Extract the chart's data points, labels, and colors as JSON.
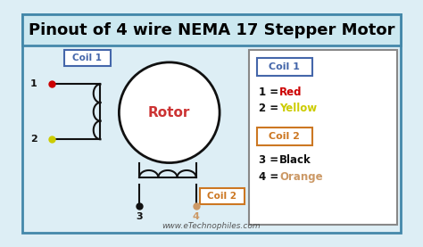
{
  "title": "Pinout of 4 wire NEMA 17 Stepper Motor",
  "title_fontsize": 13,
  "title_color": "#000000",
  "title_bg": "#cce8f0",
  "bg_color": "#ddeef5",
  "outer_border_color": "#4488aa",
  "rotor_label": "Rotor",
  "rotor_color": "#cc3333",
  "coil1_label": "Coil 1",
  "coil1_border": "#4466aa",
  "coil2_label": "Coil 2",
  "coil2_border": "#cc7722",
  "pin1_label": "1",
  "pin2_label": "2",
  "pin3_label": "3",
  "pin4_label": "4",
  "pin1_color": "#cc0000",
  "pin2_color": "#cccc00",
  "pin3_color": "#111111",
  "pin4_color": "#cc9966",
  "website": "www.eTechnophiles.com",
  "line_color": "#111111",
  "legend_box_color": "#888888",
  "yellow_text": "#cccc00",
  "orange_text": "#cc9966"
}
